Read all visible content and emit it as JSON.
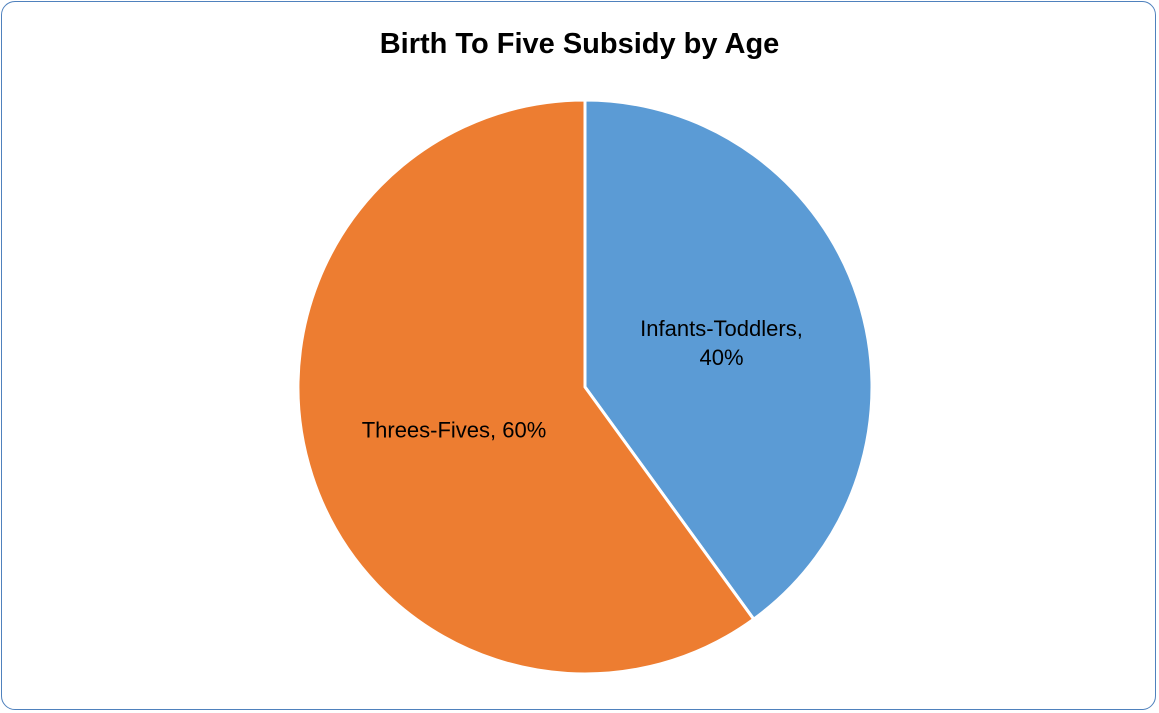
{
  "chart_data": {
    "type": "pie",
    "title": "Birth To Five Subsidy by Age",
    "categories": [
      "Infants-Toddlers",
      "Threes-Fives"
    ],
    "values": [
      40,
      60
    ],
    "unit": "%",
    "colors": [
      "#5b9bd5",
      "#ed7d31"
    ],
    "labels": [
      [
        "Infants-Toddlers,",
        "40%"
      ],
      [
        "Threes-Fives, 60%"
      ]
    ],
    "legend": "none",
    "start_angle_deg": 0,
    "direction": "clockwise"
  }
}
